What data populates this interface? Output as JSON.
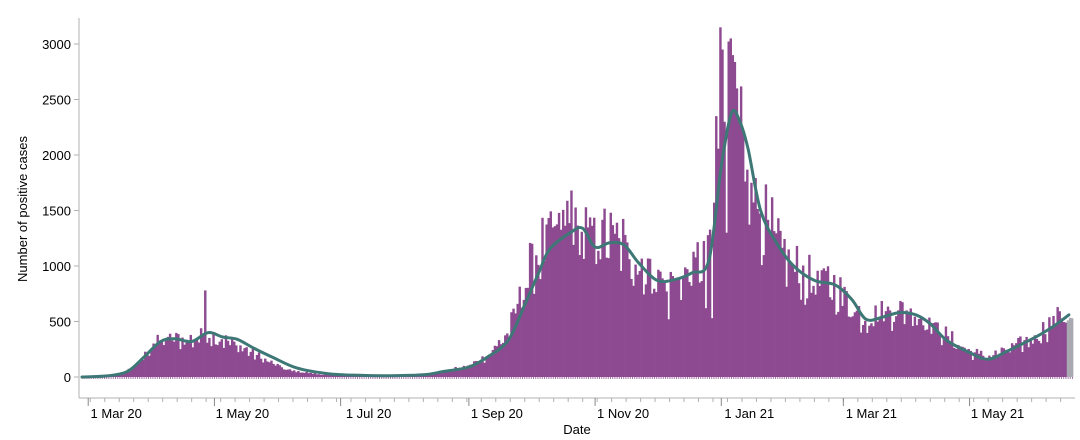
{
  "chart_data": {
    "type": "bar",
    "xlabel": "Date",
    "ylabel": "Number of positive cases",
    "x_range": [
      "2020-02-27",
      "2021-06-20"
    ],
    "ylim": [
      0,
      3200
    ],
    "grid": false,
    "legend": "none",
    "x_ticks": [
      {
        "date": "2020-03-01",
        "label": "1 Mar 20"
      },
      {
        "date": "2020-05-01",
        "label": "1 May 20"
      },
      {
        "date": "2020-07-01",
        "label": "1 Jul 20"
      },
      {
        "date": "2020-09-01",
        "label": "1 Sep 20"
      },
      {
        "date": "2020-11-01",
        "label": "1 Nov 20"
      },
      {
        "date": "2021-01-01",
        "label": "1 Jan 21"
      },
      {
        "date": "2021-03-01",
        "label": "1 Mar 21"
      },
      {
        "date": "2021-05-01",
        "label": "1 May 21"
      }
    ],
    "y_ticks": [
      0,
      500,
      1000,
      1500,
      2000,
      2500,
      3000
    ],
    "daily_cases_anchors": [
      [
        "2020-02-27",
        0
      ],
      [
        "2020-03-10",
        10
      ],
      [
        "2020-03-18",
        40
      ],
      [
        "2020-03-25",
        120
      ],
      [
        "2020-04-01",
        300
      ],
      [
        "2020-04-10",
        340
      ],
      [
        "2020-04-20",
        330
      ],
      [
        "2020-04-27",
        380
      ],
      [
        "2020-05-05",
        330
      ],
      [
        "2020-05-15",
        250
      ],
      [
        "2020-05-25",
        150
      ],
      [
        "2020-06-05",
        60
      ],
      [
        "2020-06-20",
        25
      ],
      [
        "2020-07-05",
        15
      ],
      [
        "2020-07-25",
        10
      ],
      [
        "2020-08-10",
        20
      ],
      [
        "2020-08-20",
        50
      ],
      [
        "2020-09-01",
        100
      ],
      [
        "2020-09-10",
        200
      ],
      [
        "2020-09-20",
        400
      ],
      [
        "2020-09-25",
        700
      ],
      [
        "2020-10-01",
        1000
      ],
      [
        "2020-10-08",
        1200
      ],
      [
        "2020-10-18",
        1400
      ],
      [
        "2020-10-25",
        1250
      ],
      [
        "2020-11-05",
        1250
      ],
      [
        "2020-11-15",
        1150
      ],
      [
        "2020-11-25",
        950
      ],
      [
        "2020-12-05",
        850
      ],
      [
        "2020-12-15",
        900
      ],
      [
        "2020-12-25",
        1100
      ],
      [
        "2020-12-30",
        2000
      ],
      [
        "2021-01-03",
        2600
      ],
      [
        "2021-01-07",
        2600
      ],
      [
        "2021-01-12",
        2000
      ],
      [
        "2021-01-20",
        1400
      ],
      [
        "2021-02-01",
        1050
      ],
      [
        "2021-02-10",
        850
      ],
      [
        "2021-02-20",
        850
      ],
      [
        "2021-03-01",
        700
      ],
      [
        "2021-03-10",
        520
      ],
      [
        "2021-03-20",
        580
      ],
      [
        "2021-04-01",
        600
      ],
      [
        "2021-04-10",
        500
      ],
      [
        "2021-04-20",
        350
      ],
      [
        "2021-05-01",
        220
      ],
      [
        "2021-05-10",
        180
      ],
      [
        "2021-05-20",
        250
      ],
      [
        "2021-06-01",
        350
      ],
      [
        "2021-06-10",
        500
      ],
      [
        "2021-06-17",
        560
      ],
      [
        "2021-06-19",
        520
      ]
    ],
    "daily_cases_spikes": [
      [
        "2020-04-26",
        780
      ],
      [
        "2020-10-20",
        1680
      ],
      [
        "2020-11-08",
        1480
      ],
      [
        "2020-12-31",
        3150
      ],
      [
        "2021-01-01",
        2950
      ],
      [
        "2021-01-05",
        3050
      ],
      [
        "2021-01-06",
        2900
      ],
      [
        "2021-01-08",
        2600
      ],
      [
        "2021-01-15",
        1750
      ],
      [
        "2021-06-12",
        630
      ]
    ],
    "daily_cases_dips": [
      [
        "2020-12-06",
        520
      ],
      [
        "2020-12-24",
        620
      ],
      [
        "2020-12-27",
        530
      ],
      [
        "2021-01-03",
        1300
      ]
    ],
    "rolling_average": [
      [
        "2020-02-27",
        0
      ],
      [
        "2020-03-10",
        10
      ],
      [
        "2020-03-20",
        50
      ],
      [
        "2020-03-28",
        180
      ],
      [
        "2020-04-05",
        320
      ],
      [
        "2020-04-12",
        345
      ],
      [
        "2020-04-20",
        320
      ],
      [
        "2020-04-28",
        400
      ],
      [
        "2020-05-05",
        360
      ],
      [
        "2020-05-12",
        340
      ],
      [
        "2020-05-20",
        260
      ],
      [
        "2020-05-30",
        170
      ],
      [
        "2020-06-10",
        80
      ],
      [
        "2020-06-25",
        30
      ],
      [
        "2020-07-10",
        15
      ],
      [
        "2020-07-25",
        12
      ],
      [
        "2020-08-10",
        20
      ],
      [
        "2020-08-20",
        50
      ],
      [
        "2020-09-01",
        90
      ],
      [
        "2020-09-10",
        180
      ],
      [
        "2020-09-20",
        330
      ],
      [
        "2020-09-28",
        650
      ],
      [
        "2020-10-05",
        950
      ],
      [
        "2020-10-10",
        1150
      ],
      [
        "2020-10-20",
        1300
      ],
      [
        "2020-10-26",
        1340
      ],
      [
        "2020-11-01",
        1170
      ],
      [
        "2020-11-08",
        1210
      ],
      [
        "2020-11-15",
        1190
      ],
      [
        "2020-11-22",
        1030
      ],
      [
        "2020-12-01",
        870
      ],
      [
        "2020-12-10",
        880
      ],
      [
        "2020-12-18",
        940
      ],
      [
        "2020-12-26",
        1050
      ],
      [
        "2021-01-01",
        1900
      ],
      [
        "2021-01-06",
        2380
      ],
      [
        "2021-01-10",
        2300
      ],
      [
        "2021-01-14",
        2050
      ],
      [
        "2021-01-20",
        1500
      ],
      [
        "2021-01-28",
        1200
      ],
      [
        "2021-02-05",
        1000
      ],
      [
        "2021-02-15",
        870
      ],
      [
        "2021-02-25",
        830
      ],
      [
        "2021-03-05",
        700
      ],
      [
        "2021-03-12",
        520
      ],
      [
        "2021-03-20",
        540
      ],
      [
        "2021-03-28",
        580
      ],
      [
        "2021-04-05",
        560
      ],
      [
        "2021-04-12",
        480
      ],
      [
        "2021-04-20",
        330
      ],
      [
        "2021-05-01",
        220
      ],
      [
        "2021-05-10",
        160
      ],
      [
        "2021-05-20",
        240
      ],
      [
        "2021-06-01",
        350
      ],
      [
        "2021-06-10",
        450
      ],
      [
        "2021-06-18",
        560
      ]
    ],
    "colors": {
      "bars": "#8e4a91",
      "recent_bars": "#a9a9b2",
      "rolling_average": "#3e7876",
      "axis": "#b0b0b0"
    }
  }
}
